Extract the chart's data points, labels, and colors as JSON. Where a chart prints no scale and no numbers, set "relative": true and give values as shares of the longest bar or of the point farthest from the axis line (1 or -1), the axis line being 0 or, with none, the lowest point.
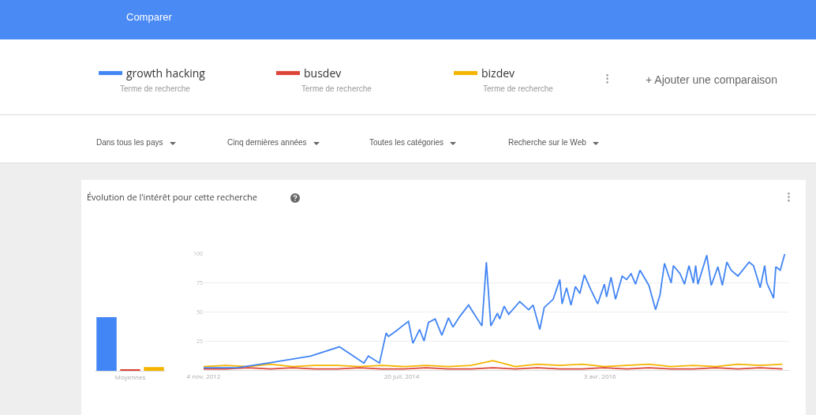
{
  "chart_data": [
    {
      "type": "bar",
      "relative": true,
      "categories": [
        null,
        "Moyennes",
        null
      ],
      "legend": false,
      "grid": false,
      "values": [
        1,
        0.03,
        0.07
      ],
      "colors": [
        "#4285f4",
        "#db4437",
        "#f4b400"
      ]
    },
    {
      "type": "line",
      "title": "Évolution de l'intérêt pour cette recherche",
      "legend": "top",
      "grid": "y",
      "marker": "none",
      "line_style": "solid",
      "ylim": [
        0,
        100
      ],
      "yticks": [
        25,
        50,
        75,
        100
      ],
      "xlim": [
        "2012-11-04",
        "2017-11-19"
      ],
      "xticks": [
        {
          "value": "2012-11-04",
          "label": "4 nov. 2012"
        },
        {
          "value": "2014-07-20",
          "label": "20 juil. 2014"
        },
        {
          "value": "2016-04-03",
          "label": "3 avr. 2016"
        }
      ],
      "annotations": [
        "Comparer",
        "Terme de recherche",
        "Terme de recherche",
        "Terme de recherche",
        "+  Ajouter une comparaison",
        "Dans tous les pays",
        "Cinq dernières années",
        "Toutes les catégories",
        "Recherche sur le Web"
      ],
      "series": [
        {
          "name": "growth hacking",
          "color": "#4285f4",
          "x": [
            "2012-11-04",
            "2013-02-17",
            "2013-05-26",
            "2013-10-06",
            "2014-01-05",
            "2014-03-23",
            "2014-04-06",
            "2014-05-11",
            "2014-06-01",
            "2014-06-08",
            "2014-06-29",
            "2014-08-10",
            "2014-08-24",
            "2014-09-14",
            "2014-09-28",
            "2014-10-12",
            "2014-11-02",
            "2014-11-23",
            "2014-12-14",
            "2014-12-28",
            "2015-01-18",
            "2015-02-15",
            "2015-03-08",
            "2015-03-29",
            "2015-04-12",
            "2015-04-26",
            "2015-05-17",
            "2015-05-24",
            "2015-06-07",
            "2015-06-21",
            "2015-07-26",
            "2015-08-23",
            "2015-09-06",
            "2015-09-27",
            "2015-10-11",
            "2015-11-08",
            "2015-11-29",
            "2015-12-06",
            "2015-12-20",
            "2016-01-03",
            "2016-01-17",
            "2016-01-31",
            "2016-02-14",
            "2016-03-06",
            "2016-03-27",
            "2016-04-17",
            "2016-04-24",
            "2016-05-08",
            "2016-05-22",
            "2016-06-12",
            "2016-06-26",
            "2016-07-10",
            "2016-07-24",
            "2016-08-07",
            "2016-09-04",
            "2016-09-25",
            "2016-10-09",
            "2016-10-23",
            "2016-11-13",
            "2016-11-20",
            "2016-12-11",
            "2016-12-25",
            "2017-01-08",
            "2017-01-22",
            "2017-01-29",
            "2017-02-05",
            "2017-03-05",
            "2017-03-19",
            "2017-04-09",
            "2017-04-23",
            "2017-05-07",
            "2017-05-21",
            "2017-06-11",
            "2017-07-16",
            "2017-07-30",
            "2017-08-20",
            "2017-09-03",
            "2017-09-10",
            "2017-10-01",
            "2017-10-08",
            "2017-10-22",
            "2017-11-05"
          ],
          "values": [
            2,
            2,
            6,
            12,
            20,
            6,
            12,
            6,
            32,
            29,
            33,
            42,
            23,
            35,
            25,
            41,
            44,
            30,
            45,
            37,
            46,
            56,
            47,
            38,
            93,
            38,
            49,
            44,
            55,
            48,
            59,
            52,
            56,
            35,
            54,
            61,
            78,
            57,
            71,
            56,
            72,
            66,
            82,
            69,
            57,
            74,
            63,
            80,
            61,
            81,
            78,
            83,
            74,
            86,
            73,
            52,
            65,
            92,
            75,
            90,
            83,
            74,
            90,
            75,
            90,
            74,
            99,
            73,
            89,
            73,
            93,
            86,
            81,
            93,
            90,
            71,
            90,
            75,
            62,
            89,
            86,
            100
          ]
        },
        {
          "name": "busdev",
          "color": "#db4437",
          "x": [
            "2012-11-04",
            "2013-01-13",
            "2013-03-24",
            "2013-06-02",
            "2013-08-11",
            "2013-10-20",
            "2013-12-29",
            "2014-03-09",
            "2014-05-18",
            "2014-07-27",
            "2014-10-05",
            "2014-12-14",
            "2015-02-22",
            "2015-05-03",
            "2015-07-12",
            "2015-09-20",
            "2015-11-29",
            "2016-02-07",
            "2016-04-17",
            "2016-06-26",
            "2016-09-04",
            "2016-11-13",
            "2017-01-22",
            "2017-04-02",
            "2017-06-11",
            "2017-08-20",
            "2017-10-29"
          ],
          "values": [
            1,
            1,
            2,
            1,
            2,
            1,
            1,
            2,
            1,
            1,
            2,
            1,
            1,
            2,
            1,
            2,
            1,
            1,
            2,
            1,
            2,
            1,
            1,
            2,
            1,
            2,
            1
          ]
        },
        {
          "name": "bizdev",
          "color": "#f4b400",
          "x": [
            "2012-11-04",
            "2013-01-13",
            "2013-03-24",
            "2013-06-02",
            "2013-08-11",
            "2013-10-20",
            "2013-12-29",
            "2014-03-09",
            "2014-05-18",
            "2014-07-27",
            "2014-10-05",
            "2014-12-14",
            "2015-02-22",
            "2015-05-03",
            "2015-07-12",
            "2015-09-20",
            "2015-11-29",
            "2016-02-07",
            "2016-04-17",
            "2016-06-26",
            "2016-09-04",
            "2016-11-13",
            "2017-01-22",
            "2017-04-02",
            "2017-06-11",
            "2017-08-20",
            "2017-10-29"
          ],
          "values": [
            3,
            4,
            3,
            5,
            3,
            4,
            4,
            3,
            4,
            3,
            4,
            3,
            4,
            8,
            3,
            5,
            4,
            5,
            3,
            4,
            5,
            3,
            4,
            3,
            5,
            4,
            5
          ]
        }
      ]
    }
  ]
}
